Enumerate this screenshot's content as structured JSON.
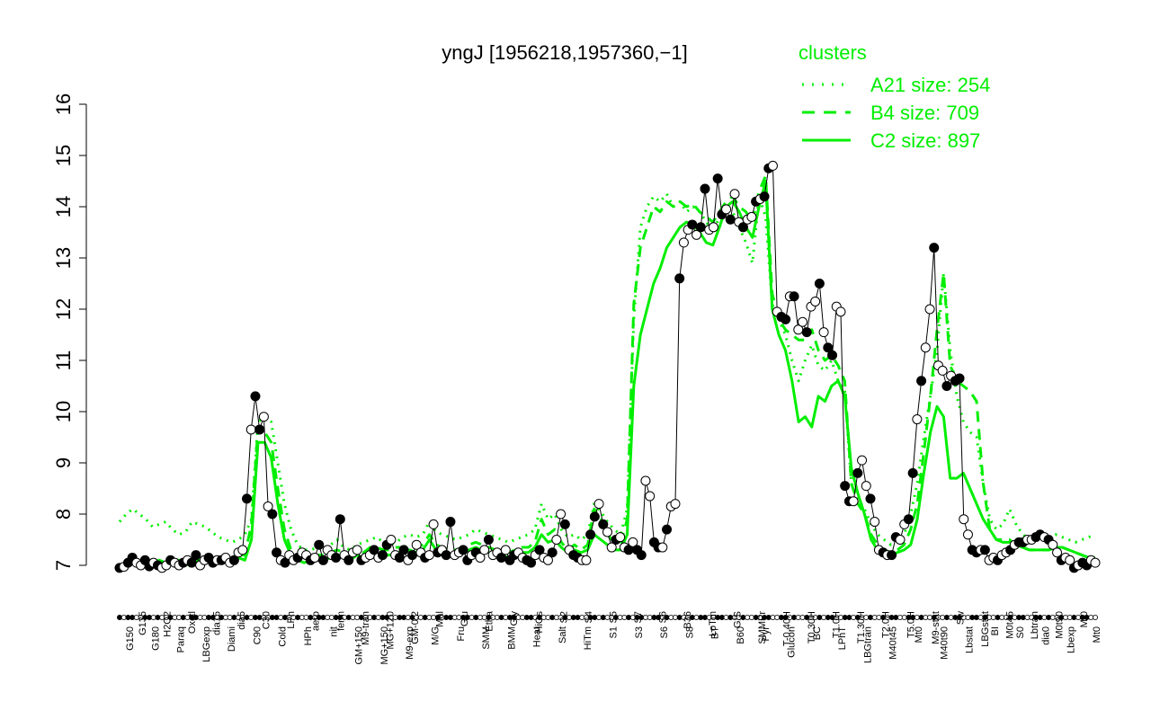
{
  "chart_data": {
    "type": "line",
    "title": "yngJ [1956218,1957360,−1]",
    "xlabel": "",
    "ylabel": "",
    "ylim": [
      7,
      16
    ],
    "yticks": [
      7,
      8,
      9,
      10,
      11,
      12,
      13,
      14,
      15,
      16
    ],
    "grid": false,
    "legend": {
      "placement": "top-right",
      "title": "clusters",
      "color": "#00ee00",
      "entries": [
        {
          "label": "A21 size: 254",
          "style": "dotted"
        },
        {
          "label": "B4 size: 709",
          "style": "dashed"
        },
        {
          "label": "C2 size: 897",
          "style": "solid"
        }
      ]
    },
    "x_tick_labels_bottom": [
      "G150",
      "G180",
      "Paraq",
      "LBGexp",
      "Diami",
      "C90",
      "Cold",
      "HPh",
      "nit",
      "GM+150",
      "MG+150",
      "M9-exp",
      "M/G",
      "Fru",
      "SMM",
      "BMM",
      "Heat",
      "Salt",
      "HiTm",
      "S1",
      "S3",
      "S6",
      "S8",
      "BT",
      "B60",
      "Pyr",
      "Glucon",
      "BC",
      "LPhT",
      "LBGtran",
      "M40t45",
      "Mt0",
      "M40t90",
      "Lbstat",
      "BI",
      "S0",
      "dia0",
      "Lbexp",
      "Mt0"
    ],
    "x_tick_labels_top": [
      "G135",
      "H2O2",
      "Oxctl",
      "dia15",
      "dia5",
      "C30",
      "LPh",
      "aero",
      "ferm",
      "M9-tran",
      "MG+120",
      "GM-0.2",
      "Mal",
      "Glu",
      "Etha",
      "Gly",
      "HiOs",
      "S2",
      "S4",
      "S5",
      "S7",
      "S6",
      "B36",
      "LoTm",
      "G/S",
      "SMMPr",
      "T-0.40H",
      "T0.30H",
      "T1.0H",
      "T1.30H",
      "T2.0H",
      "T5.0H",
      "M9-stat",
      "Sw",
      "LBGstat",
      "M0t45",
      "Lbtran",
      "M0t90",
      "Mt0"
    ],
    "series": [
      {
        "name": "profile",
        "color": "#000000",
        "values": [
          6.95,
          6.97,
          7.05,
          7.15,
          7.05,
          7.0,
          7.1,
          6.98,
          7.05,
          7.0,
          6.95,
          7.0,
          7.1,
          7.05,
          7.0,
          7.05,
          7.1,
          7.05,
          7.2,
          7.0,
          7.1,
          7.15,
          7.05,
          7.1,
          7.1,
          7.15,
          7.05,
          7.1,
          7.25,
          7.3,
          8.3,
          9.65,
          10.3,
          9.65,
          9.9,
          8.15,
          8.0,
          7.25,
          7.1,
          7.05,
          7.2,
          7.1,
          7.15,
          7.25,
          7.2,
          7.1,
          7.15,
          7.4,
          7.1,
          7.3,
          7.2,
          7.15,
          7.9,
          7.2,
          7.1,
          7.25,
          7.3,
          7.1,
          7.15,
          7.2,
          7.3,
          7.15,
          7.2,
          7.4,
          7.5,
          7.2,
          7.15,
          7.3,
          7.1,
          7.2,
          7.4,
          7.25,
          7.15,
          7.2,
          7.8,
          7.25,
          7.3,
          7.2,
          7.85,
          7.2,
          7.25,
          7.3,
          7.1,
          7.2,
          7.25,
          7.15,
          7.3,
          7.5,
          7.2,
          7.25,
          7.15,
          7.3,
          7.1,
          7.2,
          7.25,
          7.15,
          7.1,
          7.05,
          7.2,
          7.3,
          7.15,
          7.1,
          7.25,
          7.5,
          8.0,
          7.8,
          7.3,
          7.2,
          7.15,
          7.1,
          7.1,
          7.6,
          7.95,
          8.2,
          7.8,
          7.65,
          7.35,
          7.5,
          7.55,
          7.35,
          7.3,
          7.45,
          7.3,
          7.2,
          8.65,
          8.35,
          7.45,
          7.35,
          7.35,
          7.7,
          8.15,
          8.2,
          12.6,
          13.3,
          13.55,
          13.65,
          13.45,
          13.6,
          14.35,
          13.55,
          13.6,
          14.55,
          13.85,
          13.95,
          13.75,
          14.25,
          13.7,
          13.6,
          13.75,
          13.8,
          14.1,
          14.15,
          14.2,
          14.75,
          14.8,
          11.95,
          11.85,
          11.8,
          12.25,
          12.25,
          11.6,
          11.75,
          11.55,
          12.05,
          12.15,
          12.5,
          11.55,
          11.25,
          11.1,
          12.05,
          11.95,
          8.55,
          8.25,
          8.25,
          8.8,
          9.05,
          8.55,
          8.3,
          7.85,
          7.3,
          7.25,
          7.2,
          7.2,
          7.55,
          7.5,
          7.8,
          7.9,
          8.8,
          9.85,
          10.6,
          11.25,
          12.0,
          13.2,
          10.9,
          10.8,
          10.5,
          10.7,
          10.6,
          10.65,
          7.9,
          7.6,
          7.3,
          7.25,
          7.3,
          7.3,
          7.1,
          7.15,
          7.1,
          7.2,
          7.25,
          7.3,
          7.4,
          7.45,
          7.45,
          7.5,
          7.5,
          7.55,
          7.6,
          7.55,
          7.5,
          7.4,
          7.25,
          7.1,
          7.15,
          7.1,
          6.95,
          7.0,
          7.05,
          7.0,
          7.1,
          7.05
        ]
      }
    ],
    "clusters": [
      {
        "name": "A21 size: 254",
        "style": "dotted",
        "color": "#00ee00",
        "values": [
          7.85,
          8.0,
          8.1,
          8.0,
          7.9,
          7.75,
          7.8,
          7.85,
          7.7,
          7.6,
          7.65,
          7.85,
          7.8,
          7.75,
          7.65,
          7.55,
          7.5,
          7.45,
          7.5,
          7.6,
          7.9,
          9.8,
          9.9,
          9.8,
          9.0,
          8.2,
          7.7,
          7.4,
          7.3,
          7.3,
          7.35,
          7.3,
          7.4,
          7.5,
          7.35,
          7.3,
          7.4,
          7.45,
          7.5,
          7.55,
          7.45,
          7.4,
          7.45,
          7.55,
          7.6,
          7.55,
          7.6,
          7.85,
          7.65,
          7.6,
          7.55,
          7.5,
          7.55,
          7.6,
          7.7,
          7.65,
          7.6,
          7.55,
          7.5,
          7.45,
          7.5,
          7.55,
          7.6,
          7.7,
          8.2,
          7.9,
          8.0,
          7.7,
          7.55,
          7.6,
          7.5,
          7.6,
          8.2,
          8.05,
          7.85,
          7.7,
          7.6,
          8.1,
          11.8,
          13.6,
          14.0,
          14.2,
          14.1,
          14.25,
          14.0,
          14.1,
          13.9,
          14.0,
          13.9,
          13.7,
          13.5,
          13.8,
          14.0,
          13.9,
          13.6,
          13.3,
          12.9,
          14.2,
          13.8,
          12.1,
          11.8,
          11.5,
          11.0,
          10.6,
          11.0,
          11.3,
          10.9,
          10.8,
          11.0,
          10.6,
          10.4,
          8.6,
          8.3,
          8.1,
          7.8,
          7.6,
          7.5,
          7.4,
          7.5,
          7.6,
          8.0,
          8.6,
          9.5,
          10.3,
          11.2,
          12.7,
          11.2,
          10.3,
          9.8,
          9.6,
          9.5,
          8.6,
          7.9,
          7.7,
          7.8,
          8.1,
          7.8,
          7.6,
          7.5,
          7.55,
          7.55,
          7.5,
          7.6,
          7.55,
          7.5,
          7.45,
          7.5,
          7.55,
          7.6
        ]
      },
      {
        "name": "B4 size: 709",
        "style": "dashed",
        "color": "#00ee00",
        "values": [
          7.0,
          7.05,
          7.1,
          7.05,
          7.05,
          7.05,
          7.1,
          7.05,
          7.1,
          7.1,
          7.05,
          7.05,
          7.1,
          7.1,
          7.1,
          7.1,
          7.15,
          7.15,
          7.2,
          7.2,
          7.8,
          9.7,
          9.6,
          9.4,
          8.5,
          7.7,
          7.3,
          7.2,
          7.15,
          7.2,
          7.2,
          7.2,
          7.25,
          7.3,
          7.25,
          7.2,
          7.3,
          7.25,
          7.35,
          7.35,
          7.3,
          7.3,
          7.35,
          7.35,
          7.4,
          7.35,
          7.4,
          7.6,
          7.4,
          7.35,
          7.3,
          7.3,
          7.35,
          7.4,
          7.45,
          7.4,
          7.35,
          7.3,
          7.3,
          7.25,
          7.3,
          7.35,
          7.35,
          7.45,
          7.9,
          7.6,
          7.7,
          7.45,
          7.3,
          7.4,
          7.3,
          7.4,
          8.1,
          7.9,
          7.6,
          7.45,
          7.4,
          7.9,
          12.1,
          13.2,
          13.6,
          14.0,
          13.9,
          14.1,
          14.0,
          14.1,
          14.0,
          14.05,
          13.9,
          13.8,
          13.7,
          13.9,
          14.1,
          14.2,
          14.0,
          13.9,
          13.7,
          14.3,
          14.6,
          12.3,
          11.8,
          11.6,
          11.5,
          11.4,
          11.4,
          11.6,
          11.2,
          11.0,
          11.1,
          10.9,
          10.6,
          8.6,
          8.2,
          8.0,
          7.6,
          7.4,
          7.3,
          7.25,
          7.3,
          7.4,
          7.7,
          8.2,
          9.2,
          10.3,
          11.6,
          12.7,
          10.9,
          10.6,
          10.5,
          10.4,
          10.2,
          8.6,
          7.7,
          7.5,
          7.5,
          7.5,
          7.4,
          7.35,
          7.3,
          7.3,
          7.3,
          7.3,
          7.35,
          7.35,
          7.3,
          7.25,
          7.2,
          7.15,
          7.15
        ]
      },
      {
        "name": "C2 size: 897",
        "style": "solid",
        "color": "#00ee00",
        "values": [
          7.0,
          7.05,
          7.05,
          7.05,
          7.05,
          7.0,
          7.05,
          7.05,
          7.1,
          7.05,
          7.0,
          7.05,
          7.1,
          7.05,
          7.05,
          7.05,
          7.1,
          7.1,
          7.15,
          7.1,
          7.5,
          9.4,
          9.4,
          9.1,
          8.2,
          7.5,
          7.2,
          7.1,
          7.05,
          7.1,
          7.1,
          7.1,
          7.15,
          7.2,
          7.15,
          7.1,
          7.2,
          7.15,
          7.25,
          7.2,
          7.2,
          7.2,
          7.25,
          7.25,
          7.3,
          7.25,
          7.3,
          7.5,
          7.3,
          7.25,
          7.2,
          7.2,
          7.25,
          7.3,
          7.35,
          7.3,
          7.25,
          7.2,
          7.2,
          7.15,
          7.2,
          7.25,
          7.25,
          7.35,
          7.6,
          7.45,
          7.5,
          7.35,
          7.25,
          7.3,
          7.25,
          7.3,
          7.6,
          7.5,
          7.4,
          7.3,
          7.3,
          7.6,
          10.5,
          11.5,
          12.0,
          12.5,
          12.8,
          13.2,
          13.4,
          13.6,
          13.7,
          13.65,
          13.5,
          13.3,
          13.25,
          13.6,
          14.0,
          14.1,
          13.9,
          13.6,
          13.4,
          14.0,
          14.5,
          12.0,
          11.5,
          11.2,
          10.6,
          9.8,
          9.9,
          9.7,
          10.3,
          10.2,
          10.5,
          10.6,
          10.3,
          8.9,
          8.4,
          8.0,
          7.5,
          7.3,
          7.25,
          7.2,
          7.25,
          7.3,
          7.4,
          7.9,
          8.8,
          9.6,
          10.1,
          9.9,
          8.7,
          8.7,
          8.8,
          8.5,
          8.2,
          7.9,
          7.7,
          7.5,
          7.45,
          7.45,
          7.4,
          7.35,
          7.3,
          7.3,
          7.3,
          7.3,
          7.35,
          7.35,
          7.3,
          7.25,
          7.2,
          7.15,
          7.1
        ]
      }
    ]
  }
}
